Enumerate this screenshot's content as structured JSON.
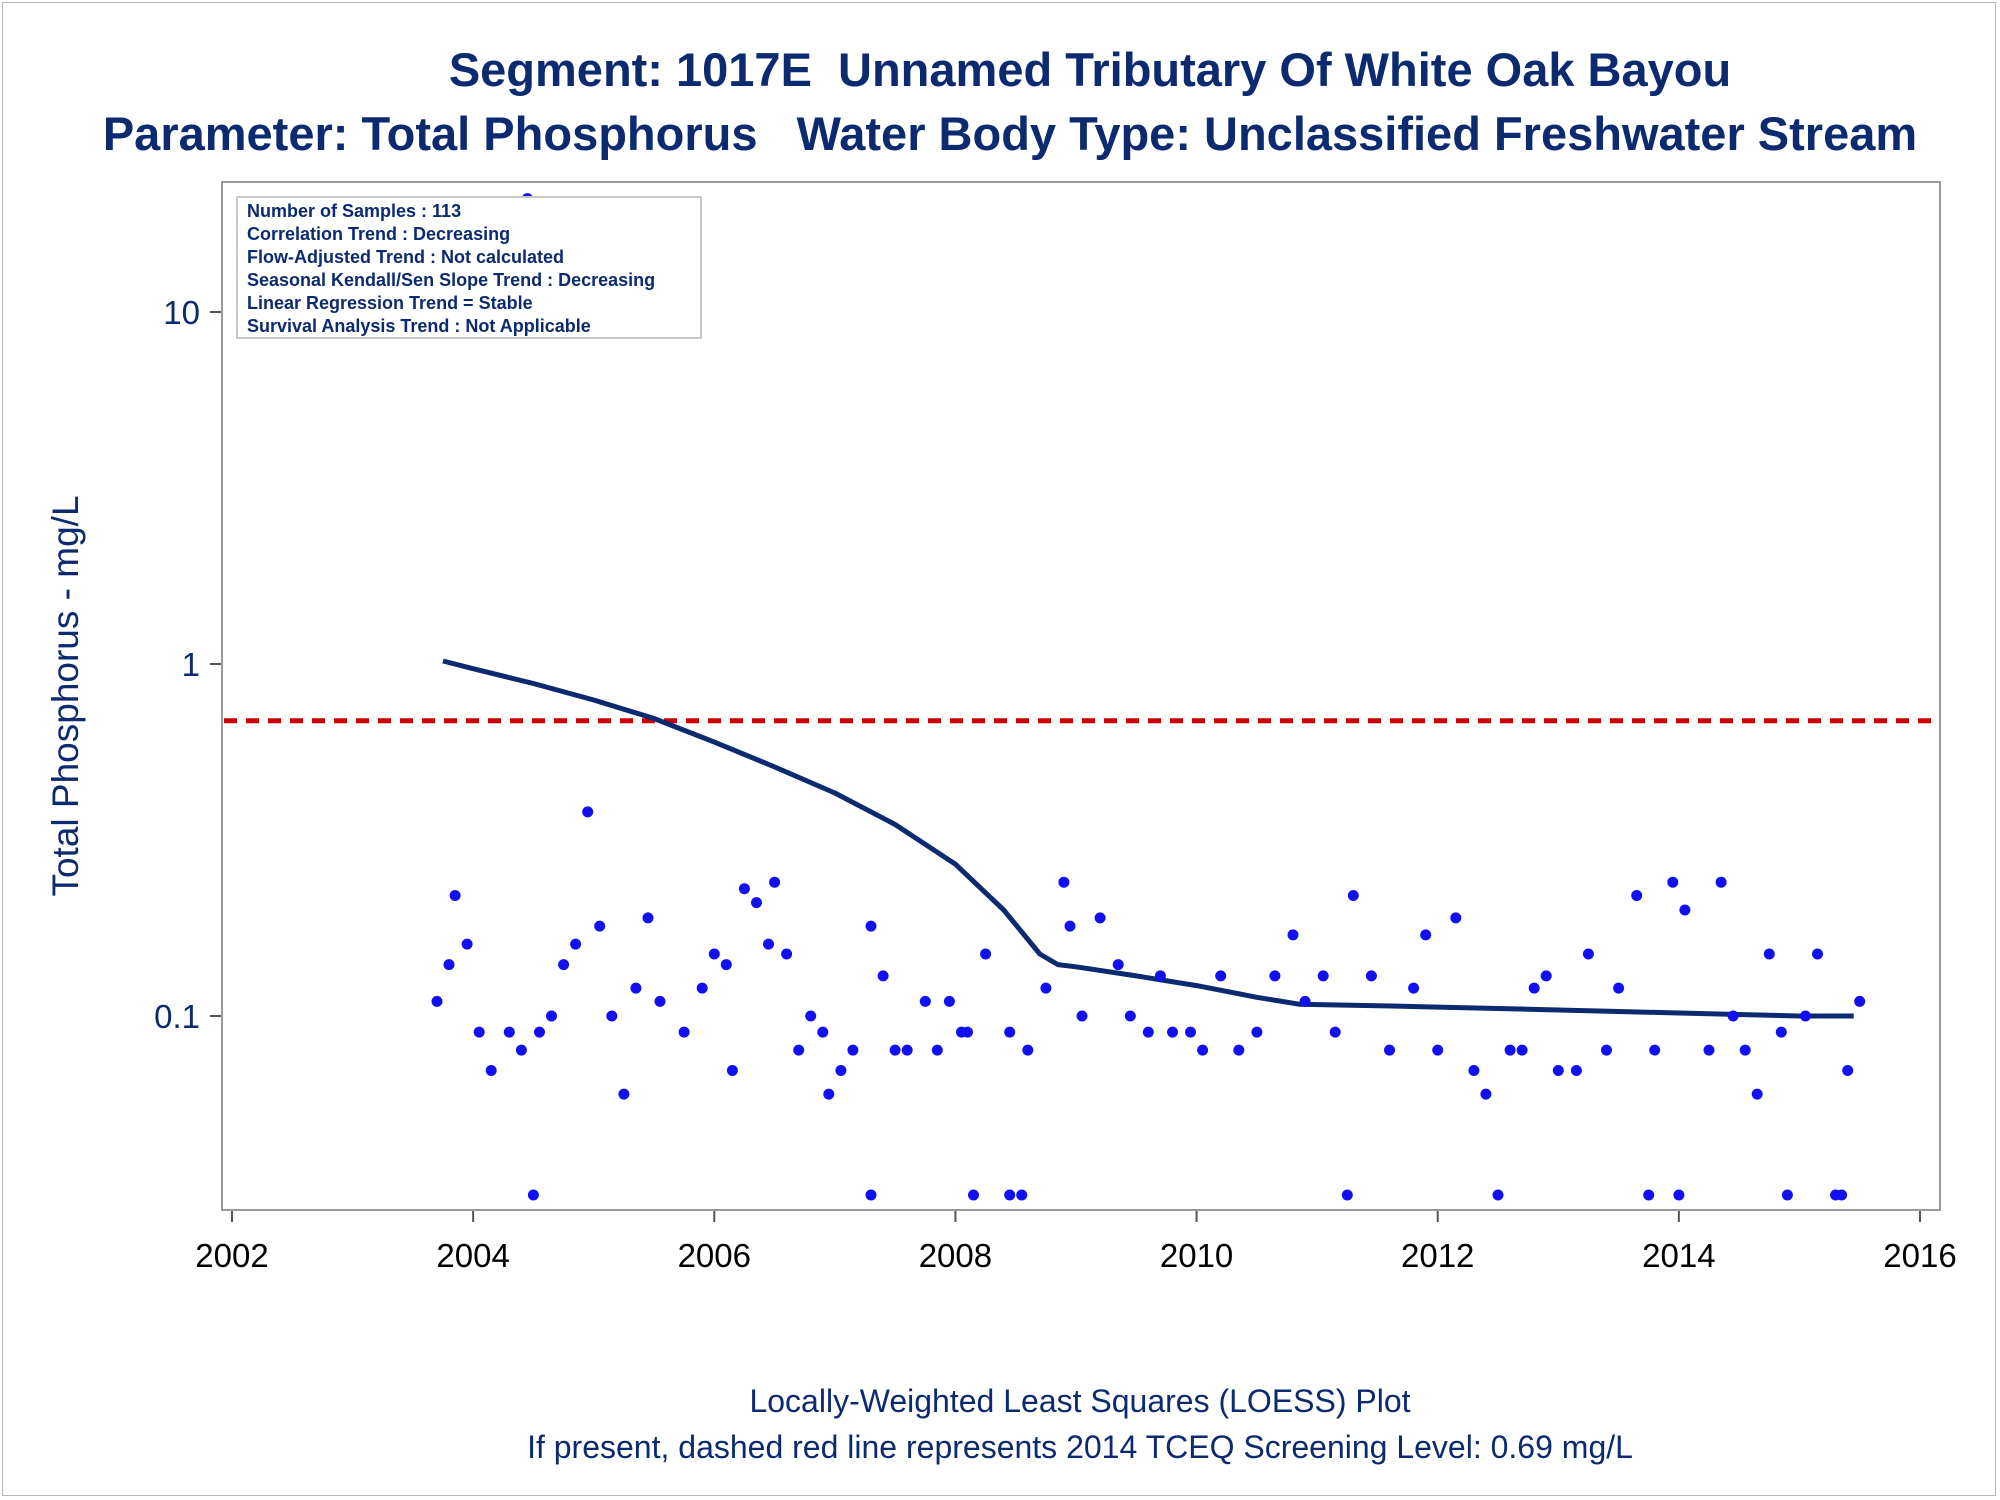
{
  "titles": {
    "line1": "Segment: 1017E  Unnamed Tributary Of White Oak Bayou",
    "line2": "Parameter: Total Phosphorus   Water Body Type: Unclassified Freshwater Stream"
  },
  "footnotes": {
    "line1": "Locally-Weighted Least Squares (LOESS) Plot",
    "line2": "If present, dashed red line represents 2014 TCEQ Screening Level: 0.69 mg/L"
  },
  "inset": [
    "Number of Samples : 113",
    "Correlation Trend : Decreasing",
    "Flow-Adjusted Trend : Not calculated",
    "Seasonal Kendall/Sen Slope Trend : Decreasing",
    "Linear Regression Trend = Stable",
    "Survival Analysis Trend : Not Applicable"
  ],
  "colors": {
    "points": "#1010f0",
    "loess": "#0b2a6f",
    "screening": "#cc0000",
    "text": "#0b2a6f"
  },
  "chart_data": {
    "type": "scatter",
    "xlabel": "",
    "ylabel": "Total Phosphorus - mg/L",
    "x_scale": "linear",
    "y_scale": "log",
    "xlim": [
      2002,
      2016
    ],
    "ylim": [
      0.03,
      22
    ],
    "x_ticks": [
      2002,
      2004,
      2006,
      2008,
      2010,
      2012,
      2014,
      2016
    ],
    "y_ticks": [
      0.1,
      1,
      10
    ],
    "y_tick_labels": [
      "0.1",
      "1",
      "10"
    ],
    "grid": false,
    "screening_level": 0.69,
    "points": [
      [
        2003.7,
        0.11
      ],
      [
        2003.8,
        0.14
      ],
      [
        2003.85,
        0.22
      ],
      [
        2003.95,
        0.16
      ],
      [
        2004.05,
        0.09
      ],
      [
        2004.15,
        0.07
      ],
      [
        2004.3,
        0.09
      ],
      [
        2004.4,
        0.08
      ],
      [
        2004.55,
        0.09
      ],
      [
        2004.65,
        0.1
      ],
      [
        2004.75,
        0.14
      ],
      [
        2004.85,
        0.16
      ],
      [
        2004.95,
        0.38
      ],
      [
        2005.05,
        0.18
      ],
      [
        2005.15,
        0.1
      ],
      [
        2005.25,
        0.06
      ],
      [
        2005.35,
        0.12
      ],
      [
        2005.45,
        0.19
      ],
      [
        2005.55,
        0.11
      ],
      [
        2005.75,
        0.09
      ],
      [
        2005.9,
        0.12
      ],
      [
        2006.0,
        0.15
      ],
      [
        2006.1,
        0.14
      ],
      [
        2006.15,
        0.07
      ],
      [
        2006.25,
        0.23
      ],
      [
        2006.35,
        0.21
      ],
      [
        2006.45,
        0.16
      ],
      [
        2006.5,
        0.24
      ],
      [
        2006.6,
        0.15
      ],
      [
        2006.7,
        0.08
      ],
      [
        2006.8,
        0.1
      ],
      [
        2006.9,
        0.09
      ],
      [
        2006.95,
        0.06
      ],
      [
        2007.05,
        0.07
      ],
      [
        2007.15,
        0.08
      ],
      [
        2007.3,
        0.18
      ],
      [
        2007.4,
        0.13
      ],
      [
        2007.5,
        0.08
      ],
      [
        2007.6,
        0.08
      ],
      [
        2007.75,
        0.11
      ],
      [
        2007.85,
        0.08
      ],
      [
        2007.95,
        0.11
      ],
      [
        2008.05,
        0.09
      ],
      [
        2008.1,
        0.09
      ],
      [
        2008.25,
        0.15
      ],
      [
        2008.45,
        0.09
      ],
      [
        2008.6,
        0.08
      ],
      [
        2008.75,
        0.12
      ],
      [
        2008.9,
        0.24
      ],
      [
        2008.95,
        0.18
      ],
      [
        2009.05,
        0.1
      ],
      [
        2009.2,
        0.19
      ],
      [
        2009.35,
        0.14
      ],
      [
        2009.45,
        0.1
      ],
      [
        2009.6,
        0.09
      ],
      [
        2009.7,
        0.13
      ],
      [
        2009.8,
        0.09
      ],
      [
        2009.95,
        0.09
      ],
      [
        2010.05,
        0.08
      ],
      [
        2010.2,
        0.13
      ],
      [
        2010.35,
        0.08
      ],
      [
        2010.5,
        0.09
      ],
      [
        2010.65,
        0.13
      ],
      [
        2010.8,
        0.17
      ],
      [
        2010.9,
        0.11
      ],
      [
        2011.05,
        0.13
      ],
      [
        2011.15,
        0.09
      ],
      [
        2011.3,
        0.22
      ],
      [
        2011.45,
        0.13
      ],
      [
        2011.6,
        0.08
      ],
      [
        2011.8,
        0.12
      ],
      [
        2011.9,
        0.17
      ],
      [
        2012.0,
        0.08
      ],
      [
        2012.15,
        0.19
      ],
      [
        2012.3,
        0.07
      ],
      [
        2012.4,
        0.06
      ],
      [
        2012.6,
        0.08
      ],
      [
        2012.7,
        0.08
      ],
      [
        2012.8,
        0.12
      ],
      [
        2012.9,
        0.13
      ],
      [
        2013.0,
        0.07
      ],
      [
        2013.15,
        0.07
      ],
      [
        2013.25,
        0.15
      ],
      [
        2013.4,
        0.08
      ],
      [
        2013.5,
        0.12
      ],
      [
        2013.65,
        0.22
      ],
      [
        2013.8,
        0.08
      ],
      [
        2013.95,
        0.24
      ],
      [
        2014.05,
        0.2
      ],
      [
        2014.25,
        0.08
      ],
      [
        2014.35,
        0.24
      ],
      [
        2014.45,
        0.1
      ],
      [
        2014.55,
        0.08
      ],
      [
        2014.65,
        0.06
      ],
      [
        2014.75,
        0.15
      ],
      [
        2014.85,
        0.09
      ],
      [
        2015.05,
        0.1
      ],
      [
        2015.15,
        0.15
      ],
      [
        2015.4,
        0.07
      ],
      [
        2015.5,
        0.11
      ],
      [
        2004.5,
        0.031
      ],
      [
        2007.3,
        0.031
      ],
      [
        2008.15,
        0.031
      ],
      [
        2008.45,
        0.031
      ],
      [
        2008.55,
        0.031
      ],
      [
        2011.25,
        0.031
      ],
      [
        2012.5,
        0.031
      ],
      [
        2013.75,
        0.031
      ],
      [
        2014.0,
        0.031
      ],
      [
        2014.9,
        0.031
      ],
      [
        2015.3,
        0.031
      ],
      [
        2015.35,
        0.031
      ],
      [
        2004.45,
        21
      ]
    ],
    "loess": [
      [
        2003.75,
        1.02
      ],
      [
        2004.0,
        0.97
      ],
      [
        2004.5,
        0.88
      ],
      [
        2005.0,
        0.79
      ],
      [
        2005.5,
        0.7
      ],
      [
        2006.0,
        0.6
      ],
      [
        2006.5,
        0.51
      ],
      [
        2007.0,
        0.43
      ],
      [
        2007.5,
        0.35
      ],
      [
        2008.0,
        0.27
      ],
      [
        2008.4,
        0.2
      ],
      [
        2008.7,
        0.15
      ],
      [
        2008.85,
        0.14
      ],
      [
        2009.0,
        0.138
      ],
      [
        2009.5,
        0.13
      ],
      [
        2010.0,
        0.122
      ],
      [
        2010.5,
        0.113
      ],
      [
        2010.85,
        0.108
      ],
      [
        2011.5,
        0.107
      ],
      [
        2012.0,
        0.106
      ],
      [
        2012.5,
        0.105
      ],
      [
        2013.0,
        0.104
      ],
      [
        2013.5,
        0.103
      ],
      [
        2014.0,
        0.102
      ],
      [
        2014.5,
        0.101
      ],
      [
        2015.0,
        0.1
      ],
      [
        2015.45,
        0.1
      ]
    ]
  }
}
